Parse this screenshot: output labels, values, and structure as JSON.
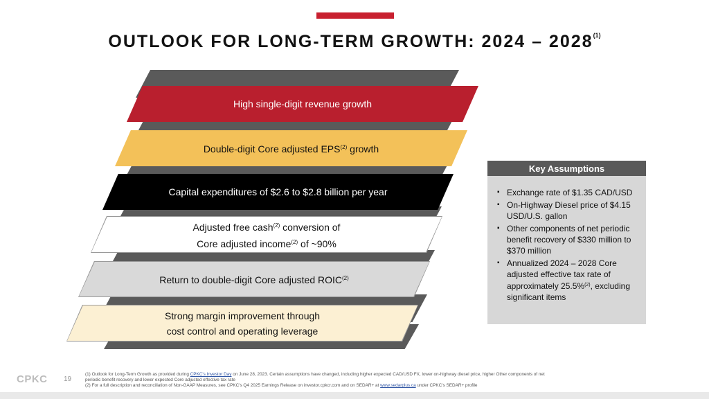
{
  "header": {
    "title": "OUTLOOK FOR LONG-TERM GROWTH: 2024 – 2028",
    "title_ref": "(1)",
    "accent_color": "#c8202f"
  },
  "staircase": {
    "items": [
      {
        "line1": "High single-digit revenue growth",
        "sup1": "",
        "line1_after": "",
        "line2": "",
        "sup2": "",
        "line2_after": ""
      },
      {
        "line1": "Double-digit Core adjusted EPS",
        "sup1": "(2)",
        "line1_after": " growth",
        "line2": "",
        "sup2": "",
        "line2_after": ""
      },
      {
        "line1": "Capital expenditures of $2.6 to $2.8 billion per year",
        "sup1": "",
        "line1_after": "",
        "line2": "",
        "sup2": "",
        "line2_after": ""
      },
      {
        "line1": "Adjusted free cash",
        "sup1": "(2)",
        "line1_after": " conversion of",
        "line2": "Core adjusted income",
        "sup2": "(2)",
        "line2_after": " of ~90%"
      },
      {
        "line1": "Return to double-digit Core adjusted ROIC",
        "sup1": "(2)",
        "line1_after": "",
        "line2": "",
        "sup2": "",
        "line2_after": ""
      },
      {
        "line1": "Strong margin improvement through",
        "sup1": "",
        "line1_after": "",
        "line2": "cost control and operating leverage",
        "sup2": "",
        "line2_after": ""
      }
    ]
  },
  "key_assumptions": {
    "title": "Key Assumptions",
    "items": [
      {
        "text": "Exchange rate of $1.35 CAD/USD",
        "sup": "",
        "after": ""
      },
      {
        "text": "On-Highway Diesel price of $4.15 USD/U.S. gallon",
        "sup": "",
        "after": ""
      },
      {
        "text": "Other components of net periodic benefit recovery of $330 million to $370 million",
        "sup": "",
        "after": ""
      },
      {
        "text": "Annualized 2024 – 2028 Core adjusted effective tax rate of approximately 25.5%",
        "sup": "(2)",
        "after": ", excluding significant items"
      }
    ]
  },
  "footer": {
    "logo": "CPKC",
    "page_number": "19",
    "note1_a": "(1)  Outlook for Long-Term Growth as provided during ",
    "note1_link": "CPKC's Investor Day",
    "note1_b": " on June 28, 2023. Certain assumptions have changed, including higher expected CAD/USD FX, lower on-highway diesel price, higher Other components of net periodic benefit recovery and lower expected Core adjusted effective tax rate",
    "note2_a": "(2)  For a full description and reconciliation of Non-GAAP Measures, see CPKC's Q4 2025 Earnings Release on investor.cpkcr.com and on SEDAR+ at ",
    "note2_link": "www.sedarplus.ca",
    "note2_b": " under CPKC's SEDAR+ profile"
  }
}
